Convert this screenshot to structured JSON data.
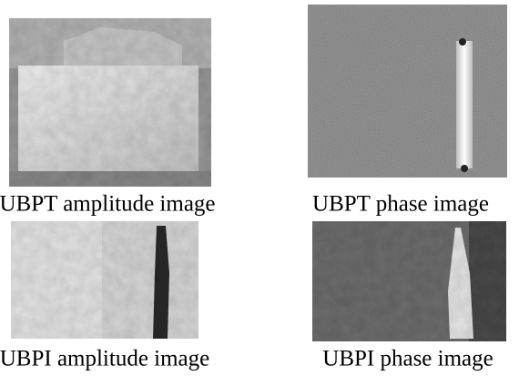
{
  "figure": {
    "panels": [
      {
        "caption": "UBPT amplitude image"
      },
      {
        "caption": "UBPT phase image"
      },
      {
        "caption": "UBPI amplitude image"
      },
      {
        "caption": "UBPI phase image"
      }
    ]
  }
}
